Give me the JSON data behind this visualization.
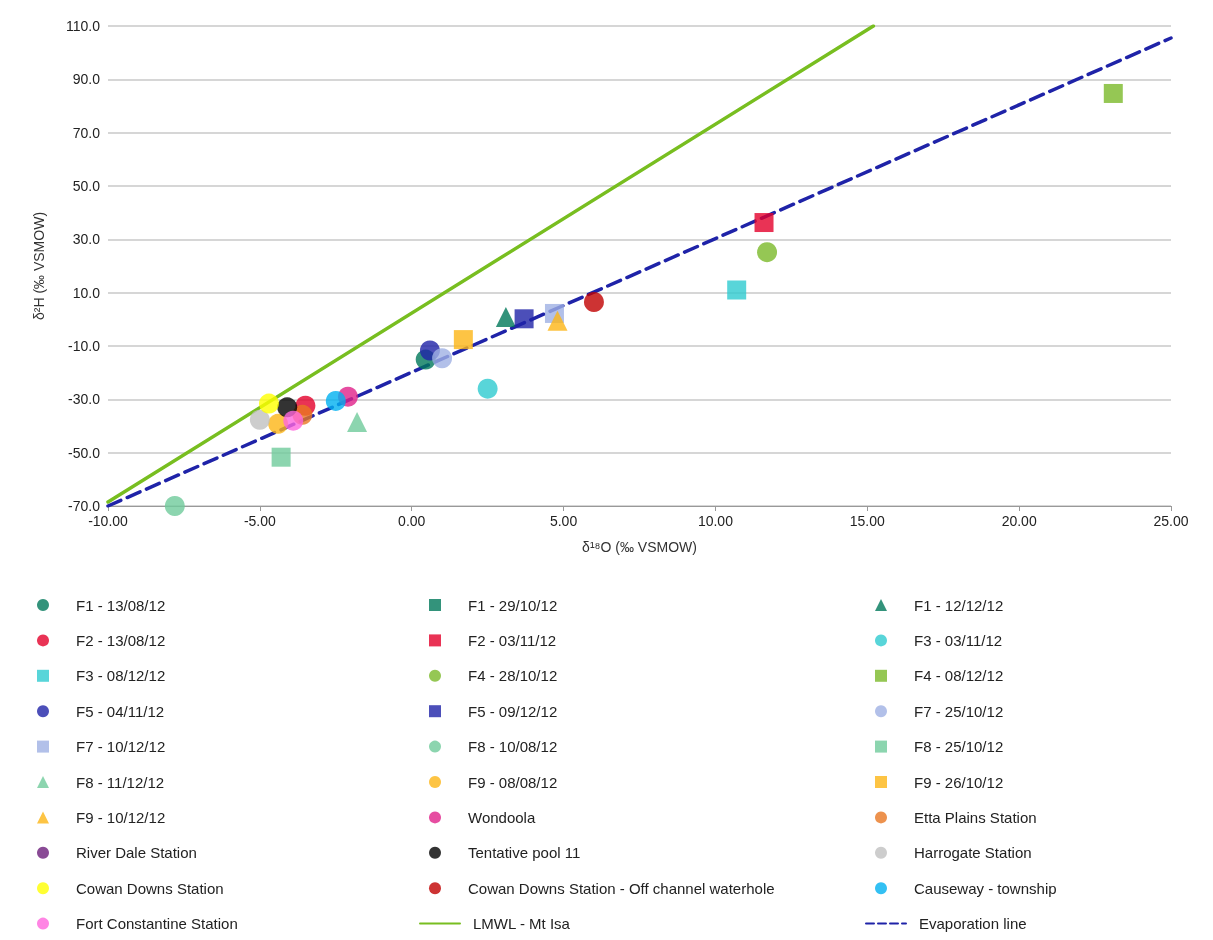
{
  "chart_data": {
    "type": "scatter",
    "xlabel": "δ¹⁸O (‰ VSMOW)",
    "ylabel": "δ²H (‰ VSMOW)",
    "xlim": [
      -10,
      25
    ],
    "xticks": [
      {
        "value": -10,
        "label": "-10.00"
      },
      {
        "value": -5,
        "label": "-5.00"
      },
      {
        "value": 0,
        "label": "0.00"
      },
      {
        "value": 5,
        "label": "5.00"
      },
      {
        "value": 10,
        "label": "10.00"
      },
      {
        "value": 15,
        "label": "15.00"
      },
      {
        "value": 20,
        "label": "20.00"
      },
      {
        "value": 25,
        "label": "25.00"
      }
    ],
    "ylim": [
      -70,
      110
    ],
    "yticks": [
      {
        "value": -70,
        "label": "-70.0"
      },
      {
        "value": -50,
        "label": "-50.0"
      },
      {
        "value": -30,
        "label": "-30.0"
      },
      {
        "value": -10,
        "label": "-10.0"
      },
      {
        "value": 10,
        "label": "10.0"
      },
      {
        "value": 30,
        "label": "30.0"
      },
      {
        "value": 50,
        "label": "50.0"
      },
      {
        "value": 70,
        "label": "70.0"
      },
      {
        "value": 90,
        "label": "90.0"
      },
      {
        "value": 110,
        "label": "110.0"
      }
    ],
    "grid": "y",
    "legend": "bottom",
    "series": [
      {
        "name": "F1 - 13/08/12",
        "color": "#00785a",
        "marker": "circle",
        "x": [
          0.46
        ],
        "values": [
          -15.1
        ]
      },
      {
        "name": "F1 - 29/10/12",
        "color": "#00785a",
        "marker": "square",
        "x": [
          null
        ],
        "values": [
          null
        ]
      },
      {
        "name": "F1 - 12/12/12",
        "color": "#00785a",
        "marker": "triangle",
        "x": [
          3.1
        ],
        "values": [
          0.9
        ]
      },
      {
        "name": "F2 - 13/08/12",
        "color": "#e4002b",
        "marker": "circle",
        "x": [
          -3.5
        ],
        "values": [
          -32.4
        ]
      },
      {
        "name": "F2 - 03/11/12",
        "color": "#e4002b",
        "marker": "square",
        "x": [
          11.6
        ],
        "values": [
          36.3
        ]
      },
      {
        "name": "F3 - 03/11/12",
        "color": "#2ecbd0",
        "marker": "circle",
        "x": [
          2.5
        ],
        "values": [
          -26
        ]
      },
      {
        "name": "F3 - 08/12/12",
        "color": "#2ecbd0",
        "marker": "square",
        "x": [
          10.7
        ],
        "values": [
          11
        ]
      },
      {
        "name": "F4 - 28/10/12",
        "color": "#7ab929",
        "marker": "circle",
        "x": [
          11.7
        ],
        "values": [
          25.2
        ]
      },
      {
        "name": "F4 - 08/12/12",
        "color": "#7ab929",
        "marker": "square",
        "x": [
          23.1
        ],
        "values": [
          84.7
        ]
      },
      {
        "name": "F5 - 04/11/12",
        "color": "#1f23a8",
        "marker": "circle",
        "x": [
          0.6
        ],
        "values": [
          -11.7
        ]
      },
      {
        "name": "F5 - 09/12/12",
        "color": "#1f23a8",
        "marker": "square",
        "x": [
          3.7
        ],
        "values": [
          0.2
        ]
      },
      {
        "name": "F7 - 25/10/12",
        "color": "#9fb0e3",
        "marker": "circle",
        "x": [
          1
        ],
        "values": [
          -14.6
        ]
      },
      {
        "name": "F7 - 10/12/12",
        "color": "#9fb0e3",
        "marker": "square",
        "x": [
          4.7
        ],
        "values": [
          2.2
        ]
      },
      {
        "name": "F8 - 10/08/12",
        "color": "#6fcb9b",
        "marker": "circle",
        "x": [
          -7.8
        ],
        "values": [
          -70
        ]
      },
      {
        "name": "F8 - 25/10/12",
        "color": "#6fcb9b",
        "marker": "square",
        "x": [
          -4.3
        ],
        "values": [
          -51.7
        ]
      },
      {
        "name": "F8 - 11/12/12",
        "color": "#6fcb9b",
        "marker": "triangle",
        "x": [
          -1.8
        ],
        "values": [
          -38.5
        ]
      },
      {
        "name": "F9 - 08/08/12",
        "color": "#fdb515",
        "marker": "circle",
        "x": [
          -4.4
        ],
        "values": [
          -39.2
        ]
      },
      {
        "name": "F9 - 26/10/12",
        "color": "#fdb515",
        "marker": "square",
        "x": [
          1.7
        ],
        "values": [
          -7.6
        ]
      },
      {
        "name": "F9 - 10/12/12",
        "color": "#fdb515",
        "marker": "triangle",
        "x": [
          4.8
        ],
        "values": [
          -0.5
        ]
      },
      {
        "name": "Wondoola",
        "color": "#e0218a",
        "marker": "circle",
        "x": [
          -2.1
        ],
        "values": [
          -29
        ]
      },
      {
        "name": "Etta Plains Station",
        "color": "#e87722",
        "marker": "circle",
        "x": [
          -3.6
        ],
        "values": [
          -35.8
        ]
      },
      {
        "name": "River Dale Station",
        "color": "#6c1d7a",
        "marker": "circle",
        "x": [
          null
        ],
        "values": [
          null
        ]
      },
      {
        "name": "Tentative pool 11",
        "color": "#000000",
        "marker": "circle",
        "x": [
          -4.1
        ],
        "values": [
          -33
        ]
      },
      {
        "name": "Harrogate Station",
        "color": "#c0c0c0",
        "marker": "circle",
        "x": [
          -5
        ],
        "values": [
          -37.7
        ]
      },
      {
        "name": "Cowan Downs Station",
        "color": "#ffff00",
        "marker": "circle",
        "x": [
          -4.7
        ],
        "values": [
          -31.6
        ]
      },
      {
        "name": "Cowan Downs Station - Off channel waterhole",
        "color": "#c00000",
        "marker": "circle",
        "x": [
          6
        ],
        "values": [
          6.5
        ]
      },
      {
        "name": "Causeway - township",
        "color": "#00b0f0",
        "marker": "circle",
        "x": [
          -2.5
        ],
        "values": [
          -30.6
        ]
      },
      {
        "name": "Fort Constantine Station",
        "color": "#ff66dd",
        "marker": "circle",
        "x": [
          -3.9
        ],
        "values": [
          -38
        ]
      },
      {
        "name": "LMWL - Mt Isa",
        "color": "#78be20",
        "type": "line",
        "line_style": "solid",
        "marker": "none",
        "x": [
          -10,
          15.2
        ],
        "values": [
          -68.5,
          110
        ]
      },
      {
        "name": "Evaporation line",
        "color": "#1f23a8",
        "type": "line",
        "line_style": "dashed",
        "marker": "none",
        "x": [
          -10,
          25
        ],
        "values": [
          -70,
          105.5
        ]
      }
    ]
  }
}
